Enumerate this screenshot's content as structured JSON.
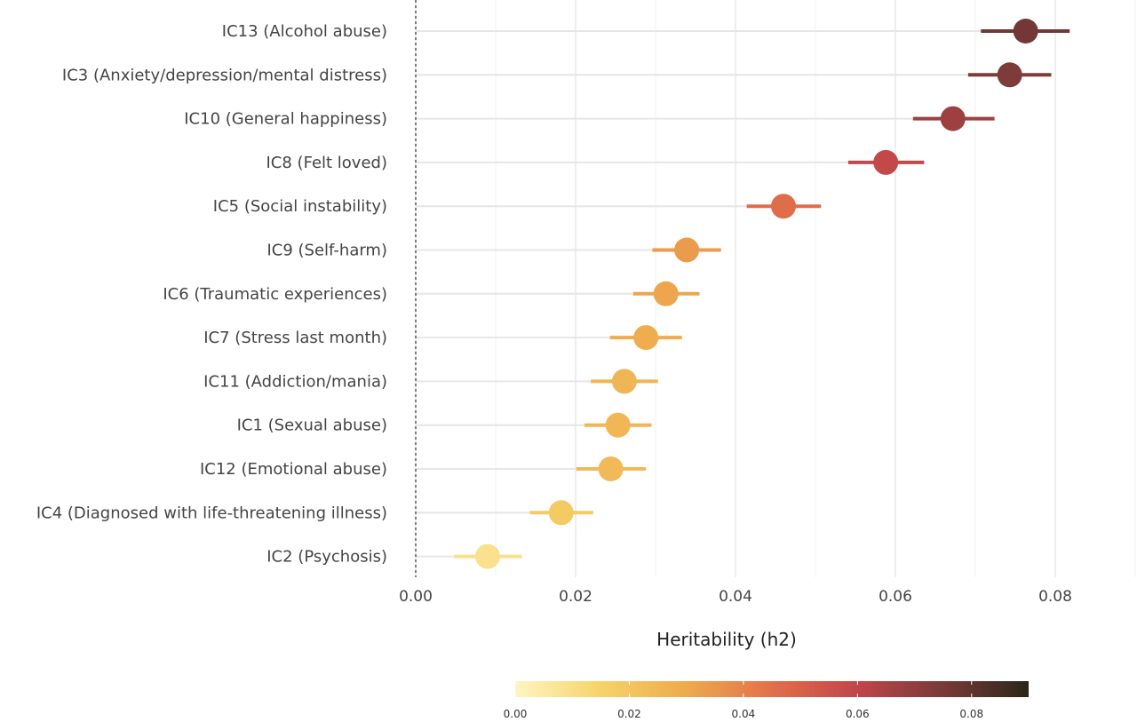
{
  "chart_data": {
    "type": "scatter",
    "subtype": "dot-and-whisker",
    "title": "",
    "xlabel": "Heritability (h2)",
    "ylabel": "",
    "xlim": [
      0,
      0.09
    ],
    "x_ticks": [
      {
        "value": 0.0,
        "label": "0.00"
      },
      {
        "value": 0.02,
        "label": "0.02"
      },
      {
        "value": 0.04,
        "label": "0.04"
      },
      {
        "value": 0.06,
        "label": "0.06"
      },
      {
        "value": 0.08,
        "label": "0.08"
      }
    ],
    "grid": true,
    "colorbar": {
      "range": [
        0,
        0.09
      ],
      "ticks": [
        {
          "value": 0.0,
          "label": "0.00"
        },
        {
          "value": 0.02,
          "label": "0.02"
        },
        {
          "value": 0.04,
          "label": "0.04"
        },
        {
          "value": 0.06,
          "label": "0.06"
        },
        {
          "value": 0.08,
          "label": "0.08"
        }
      ],
      "colors": [
        "#fff5c2",
        "#f6d36a",
        "#eeaa4e",
        "#e2704a",
        "#c0454a",
        "#7a3a38",
        "#2b261a"
      ],
      "placement": "bottom"
    },
    "points": [
      {
        "label": "IC13 (Alcohol abuse)",
        "h2": 0.0763,
        "ci_low": 0.0707,
        "ci_high": 0.0818
      },
      {
        "label": "IC3 (Anxiety/depression/mental distress)",
        "h2": 0.0743,
        "ci_low": 0.0691,
        "ci_high": 0.0795
      },
      {
        "label": "IC10 (General happiness)",
        "h2": 0.0672,
        "ci_low": 0.0622,
        "ci_high": 0.0724
      },
      {
        "label": "IC8 (Felt loved)",
        "h2": 0.0588,
        "ci_low": 0.0541,
        "ci_high": 0.0636
      },
      {
        "label": "IC5 (Social instability)",
        "h2": 0.046,
        "ci_low": 0.0414,
        "ci_high": 0.0507
      },
      {
        "label": "IC9 (Self-harm)",
        "h2": 0.0339,
        "ci_low": 0.0296,
        "ci_high": 0.0382
      },
      {
        "label": "IC6 (Traumatic experiences)",
        "h2": 0.0313,
        "ci_low": 0.0272,
        "ci_high": 0.0355
      },
      {
        "label": "IC7 (Stress last month)",
        "h2": 0.0288,
        "ci_low": 0.0243,
        "ci_high": 0.0333
      },
      {
        "label": "IC11 (Addiction/mania)",
        "h2": 0.0261,
        "ci_low": 0.0219,
        "ci_high": 0.0303
      },
      {
        "label": "IC1 (Sexual abuse)",
        "h2": 0.0253,
        "ci_low": 0.0211,
        "ci_high": 0.0295
      },
      {
        "label": "IC12 (Emotional abuse)",
        "h2": 0.0244,
        "ci_low": 0.0201,
        "ci_high": 0.0288
      },
      {
        "label": "IC4 (Diagnosed with life-threatening illness)",
        "h2": 0.0182,
        "ci_low": 0.0143,
        "ci_high": 0.0222
      },
      {
        "label": "IC2 (Psychosis)",
        "h2": 0.009,
        "ci_low": 0.0048,
        "ci_high": 0.0133
      }
    ]
  }
}
